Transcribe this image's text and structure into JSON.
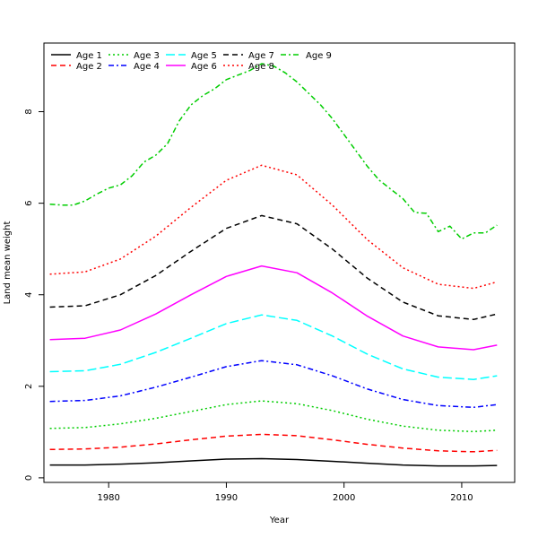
{
  "chart_data": {
    "type": "line",
    "title": "",
    "xlabel": "Year",
    "ylabel": "Land mean weight",
    "xlim": [
      1974.5,
      2014.5
    ],
    "ylim": [
      -0.1,
      9.5
    ],
    "xticks": [
      1980,
      1990,
      2000,
      2010
    ],
    "yticks": [
      0,
      2,
      4,
      6,
      8
    ],
    "grid": false,
    "legend_position": "top-left",
    "series": [
      {
        "name": "Age 1",
        "color": "#000000",
        "dash": "solid",
        "x": [
          1975,
          1978,
          1981,
          1984,
          1987,
          1990,
          1993,
          1996,
          1999,
          2002,
          2005,
          2008,
          2011,
          2013
        ],
        "y": [
          0.28,
          0.28,
          0.3,
          0.33,
          0.37,
          0.41,
          0.42,
          0.4,
          0.36,
          0.32,
          0.28,
          0.26,
          0.26,
          0.27
        ]
      },
      {
        "name": "Age 2",
        "color": "#ff0000",
        "dash": "dash",
        "x": [
          1975,
          1978,
          1981,
          1984,
          1987,
          1990,
          1993,
          1996,
          1999,
          2002,
          2005,
          2008,
          2011,
          2013
        ],
        "y": [
          0.62,
          0.63,
          0.67,
          0.74,
          0.83,
          0.91,
          0.95,
          0.92,
          0.83,
          0.73,
          0.65,
          0.59,
          0.57,
          0.6
        ]
      },
      {
        "name": "Age 3",
        "color": "#00cd00",
        "dash": "dot",
        "x": [
          1975,
          1978,
          1981,
          1984,
          1987,
          1990,
          1993,
          1996,
          1999,
          2002,
          2005,
          2008,
          2011,
          2013
        ],
        "y": [
          1.08,
          1.1,
          1.18,
          1.3,
          1.45,
          1.6,
          1.68,
          1.62,
          1.47,
          1.28,
          1.13,
          1.04,
          1.01,
          1.04
        ]
      },
      {
        "name": "Age 4",
        "color": "#0000ff",
        "dash": "dashdot",
        "x": [
          1975,
          1978,
          1981,
          1984,
          1987,
          1990,
          1993,
          1996,
          1999,
          2002,
          2005,
          2008,
          2011,
          2013
        ],
        "y": [
          1.67,
          1.69,
          1.79,
          1.98,
          2.2,
          2.43,
          2.56,
          2.47,
          2.23,
          1.94,
          1.71,
          1.58,
          1.54,
          1.6
        ]
      },
      {
        "name": "Age 5",
        "color": "#00ffff",
        "dash": "longdash",
        "x": [
          1975,
          1978,
          1981,
          1984,
          1987,
          1990,
          1993,
          1996,
          1999,
          2002,
          2005,
          2008,
          2011,
          2013
        ],
        "y": [
          2.32,
          2.34,
          2.48,
          2.74,
          3.05,
          3.37,
          3.56,
          3.44,
          3.1,
          2.7,
          2.38,
          2.2,
          2.15,
          2.23
        ]
      },
      {
        "name": "Age 6",
        "color": "#ff00ff",
        "dash": "solid",
        "x": [
          1975,
          1978,
          1981,
          1984,
          1987,
          1990,
          1993,
          1996,
          1999,
          2002,
          2005,
          2008,
          2011,
          2013
        ],
        "y": [
          3.02,
          3.05,
          3.23,
          3.58,
          4.0,
          4.4,
          4.63,
          4.48,
          4.04,
          3.53,
          3.1,
          2.86,
          2.8,
          2.9
        ]
      },
      {
        "name": "Age 7",
        "color": "#000000",
        "dash": "dash",
        "x": [
          1975,
          1978,
          1981,
          1984,
          1987,
          1990,
          1993,
          1996,
          1999,
          2002,
          2005,
          2008,
          2011,
          2013
        ],
        "y": [
          3.73,
          3.76,
          4.0,
          4.42,
          4.95,
          5.45,
          5.73,
          5.55,
          5.0,
          4.36,
          3.84,
          3.54,
          3.46,
          3.58
        ]
      },
      {
        "name": "Age 8",
        "color": "#ff0000",
        "dash": "dot",
        "x": [
          1975,
          1978,
          1981,
          1984,
          1987,
          1990,
          1993,
          1996,
          1999,
          2002,
          2005,
          2008,
          2011,
          2013
        ],
        "y": [
          4.45,
          4.5,
          4.78,
          5.28,
          5.91,
          6.5,
          6.83,
          6.62,
          5.96,
          5.2,
          4.59,
          4.23,
          4.14,
          4.28
        ]
      },
      {
        "name": "Age 9",
        "color": "#00cd00",
        "dash": "dashdot",
        "x": [
          1975,
          1976,
          1977,
          1978,
          1979,
          1980,
          1981,
          1982,
          1983,
          1984,
          1985,
          1986,
          1987,
          1988,
          1989,
          1990,
          1991,
          1992,
          1993,
          1994,
          1995,
          1996,
          1997,
          1998,
          1999,
          2000,
          2001,
          2002,
          2003,
          2004,
          2005,
          2006,
          2007,
          2008,
          2009,
          2010,
          2011,
          2012,
          2013
        ],
        "y": [
          5.98,
          5.96,
          5.96,
          6.05,
          6.2,
          6.33,
          6.4,
          6.6,
          6.9,
          7.05,
          7.3,
          7.8,
          8.15,
          8.35,
          8.5,
          8.7,
          8.8,
          8.9,
          9.05,
          9.0,
          8.85,
          8.65,
          8.4,
          8.15,
          7.85,
          7.5,
          7.15,
          6.8,
          6.5,
          6.3,
          6.1,
          5.8,
          5.78,
          5.38,
          5.5,
          5.22,
          5.35,
          5.35,
          5.52
        ]
      }
    ]
  }
}
